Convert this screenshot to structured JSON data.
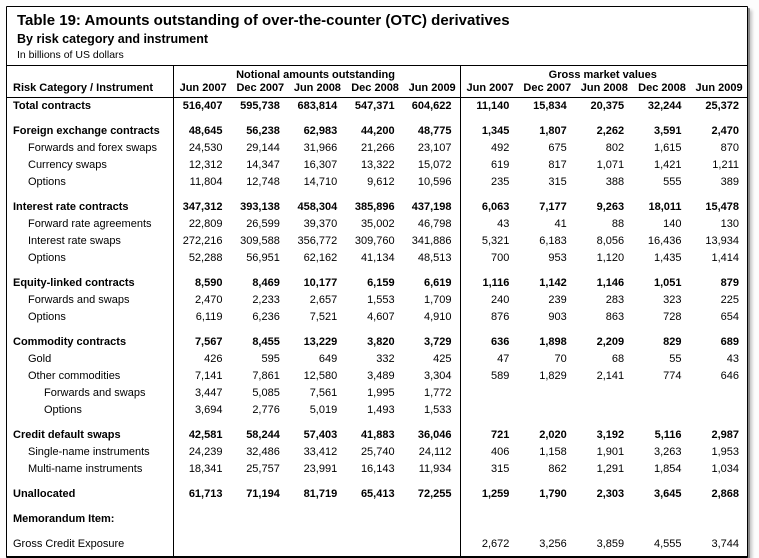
{
  "title": "Table 19: Amounts outstanding of over-the-counter (OTC) derivatives",
  "subtitle": "By risk category and instrument",
  "unit_note": "In billions of US dollars",
  "row_header": "Risk Category / Instrument",
  "column_groups": [
    "Notional amounts outstanding",
    "Gross market values"
  ],
  "periods": [
    "Jun 2007",
    "Dec 2007",
    "Jun 2008",
    "Dec 2008",
    "Jun 2009"
  ],
  "rows": [
    {
      "label": "Total contracts",
      "bold": true,
      "indent": 0,
      "gap": false,
      "notional": [
        "516,407",
        "595,738",
        "683,814",
        "547,371",
        "604,622"
      ],
      "gross": [
        "11,140",
        "15,834",
        "20,375",
        "32,244",
        "25,372"
      ]
    },
    {
      "label": "Foreign exchange contracts",
      "bold": true,
      "indent": 0,
      "gap": true,
      "notional": [
        "48,645",
        "56,238",
        "62,983",
        "44,200",
        "48,775"
      ],
      "gross": [
        "1,345",
        "1,807",
        "2,262",
        "3,591",
        "2,470"
      ]
    },
    {
      "label": "Forwards and forex swaps",
      "bold": false,
      "indent": 1,
      "gap": false,
      "notional": [
        "24,530",
        "29,144",
        "31,966",
        "21,266",
        "23,107"
      ],
      "gross": [
        "492",
        "675",
        "802",
        "1,615",
        "870"
      ]
    },
    {
      "label": "Currency swaps",
      "bold": false,
      "indent": 1,
      "gap": false,
      "notional": [
        "12,312",
        "14,347",
        "16,307",
        "13,322",
        "15,072"
      ],
      "gross": [
        "619",
        "817",
        "1,071",
        "1,421",
        "1,211"
      ]
    },
    {
      "label": "Options",
      "bold": false,
      "indent": 1,
      "gap": false,
      "notional": [
        "11,804",
        "12,748",
        "14,710",
        "9,612",
        "10,596"
      ],
      "gross": [
        "235",
        "315",
        "388",
        "555",
        "389"
      ]
    },
    {
      "label": "Interest rate contracts",
      "bold": true,
      "indent": 0,
      "gap": true,
      "notional": [
        "347,312",
        "393,138",
        "458,304",
        "385,896",
        "437,198"
      ],
      "gross": [
        "6,063",
        "7,177",
        "9,263",
        "18,011",
        "15,478"
      ]
    },
    {
      "label": "Forward rate agreements",
      "bold": false,
      "indent": 1,
      "gap": false,
      "notional": [
        "22,809",
        "26,599",
        "39,370",
        "35,002",
        "46,798"
      ],
      "gross": [
        "43",
        "41",
        "88",
        "140",
        "130"
      ]
    },
    {
      "label": "Interest rate swaps",
      "bold": false,
      "indent": 1,
      "gap": false,
      "notional": [
        "272,216",
        "309,588",
        "356,772",
        "309,760",
        "341,886"
      ],
      "gross": [
        "5,321",
        "6,183",
        "8,056",
        "16,436",
        "13,934"
      ]
    },
    {
      "label": "Options",
      "bold": false,
      "indent": 1,
      "gap": false,
      "notional": [
        "52,288",
        "56,951",
        "62,162",
        "41,134",
        "48,513"
      ],
      "gross": [
        "700",
        "953",
        "1,120",
        "1,435",
        "1,414"
      ]
    },
    {
      "label": "Equity-linked contracts",
      "bold": true,
      "indent": 0,
      "gap": true,
      "notional": [
        "8,590",
        "8,469",
        "10,177",
        "6,159",
        "6,619"
      ],
      "gross": [
        "1,116",
        "1,142",
        "1,146",
        "1,051",
        "879"
      ]
    },
    {
      "label": "Forwards and swaps",
      "bold": false,
      "indent": 1,
      "gap": false,
      "notional": [
        "2,470",
        "2,233",
        "2,657",
        "1,553",
        "1,709"
      ],
      "gross": [
        "240",
        "239",
        "283",
        "323",
        "225"
      ]
    },
    {
      "label": "Options",
      "bold": false,
      "indent": 1,
      "gap": false,
      "notional": [
        "6,119",
        "6,236",
        "7,521",
        "4,607",
        "4,910"
      ],
      "gross": [
        "876",
        "903",
        "863",
        "728",
        "654"
      ]
    },
    {
      "label": "Commodity contracts",
      "bold": true,
      "indent": 0,
      "gap": true,
      "notional": [
        "7,567",
        "8,455",
        "13,229",
        "3,820",
        "3,729"
      ],
      "gross": [
        "636",
        "1,898",
        "2,209",
        "829",
        "689"
      ]
    },
    {
      "label": "Gold",
      "bold": false,
      "indent": 1,
      "gap": false,
      "notional": [
        "426",
        "595",
        "649",
        "332",
        "425"
      ],
      "gross": [
        "47",
        "70",
        "68",
        "55",
        "43"
      ]
    },
    {
      "label": "Other commodities",
      "bold": false,
      "indent": 1,
      "gap": false,
      "notional": [
        "7,141",
        "7,861",
        "12,580",
        "3,489",
        "3,304"
      ],
      "gross": [
        "589",
        "1,829",
        "2,141",
        "774",
        "646"
      ]
    },
    {
      "label": "Forwards and swaps",
      "bold": false,
      "indent": 2,
      "gap": false,
      "notional": [
        "3,447",
        "5,085",
        "7,561",
        "1,995",
        "1,772"
      ],
      "gross": [
        "",
        "",
        "",
        "",
        ""
      ]
    },
    {
      "label": "Options",
      "bold": false,
      "indent": 2,
      "gap": false,
      "notional": [
        "3,694",
        "2,776",
        "5,019",
        "1,493",
        "1,533"
      ],
      "gross": [
        "",
        "",
        "",
        "",
        ""
      ]
    },
    {
      "label": "Credit default swaps",
      "bold": true,
      "indent": 0,
      "gap": true,
      "notional": [
        "42,581",
        "58,244",
        "57,403",
        "41,883",
        "36,046"
      ],
      "gross": [
        "721",
        "2,020",
        "3,192",
        "5,116",
        "2,987"
      ]
    },
    {
      "label": "Single-name instruments",
      "bold": false,
      "indent": 1,
      "gap": false,
      "notional": [
        "24,239",
        "32,486",
        "33,412",
        "25,740",
        "24,112"
      ],
      "gross": [
        "406",
        "1,158",
        "1,901",
        "3,263",
        "1,953"
      ]
    },
    {
      "label": "Multi-name instruments",
      "bold": false,
      "indent": 1,
      "gap": false,
      "notional": [
        "18,341",
        "25,757",
        "23,991",
        "16,143",
        "11,934"
      ],
      "gross": [
        "315",
        "862",
        "1,291",
        "1,854",
        "1,034"
      ]
    },
    {
      "label": "Unallocated",
      "bold": true,
      "indent": 0,
      "gap": true,
      "notional": [
        "61,713",
        "71,194",
        "81,719",
        "65,413",
        "72,255"
      ],
      "gross": [
        "1,259",
        "1,790",
        "2,303",
        "3,645",
        "2,868"
      ]
    },
    {
      "label": "Memorandum Item:",
      "bold": true,
      "indent": 0,
      "gap": true,
      "notional": [
        "",
        "",
        "",
        "",
        ""
      ],
      "gross": [
        "",
        "",
        "",
        "",
        ""
      ]
    },
    {
      "label": "Gross Credit Exposure",
      "bold": false,
      "indent": 0,
      "gap": true,
      "notional": [
        "",
        "",
        "",
        "",
        ""
      ],
      "gross": [
        "2,672",
        "3,256",
        "3,859",
        "4,555",
        "3,744"
      ]
    }
  ]
}
